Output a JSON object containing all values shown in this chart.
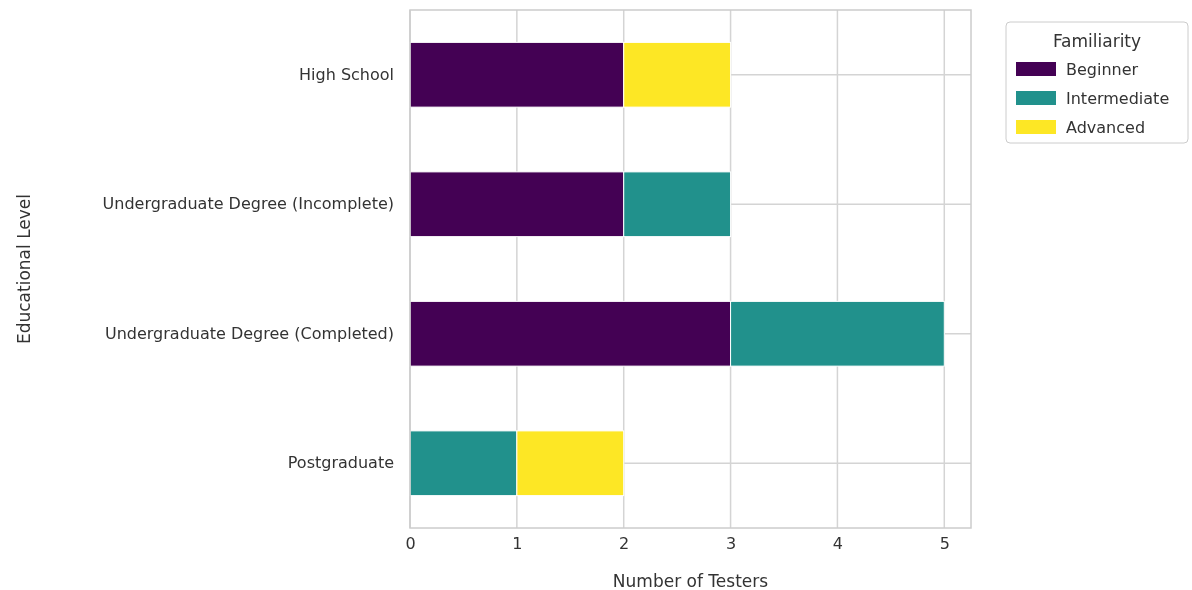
{
  "chart_data": {
    "type": "bar",
    "orientation": "horizontal",
    "stacked": true,
    "xlabel": "Number of Testers",
    "ylabel": "Educational Level",
    "legend_title": "Familiarity",
    "legend": "top right",
    "grid": true,
    "categories": [
      "High School",
      "Undergraduate Degree (Incomplete)",
      "Undergraduate Degree (Completed)",
      "Postgraduate"
    ],
    "series": [
      {
        "name": "Beginner",
        "color": "#440154",
        "values": [
          2,
          2,
          3,
          0
        ]
      },
      {
        "name": "Intermediate",
        "color": "#21918c",
        "values": [
          0,
          1,
          2,
          1
        ]
      },
      {
        "name": "Advanced",
        "color": "#fde725",
        "values": [
          1,
          0,
          0,
          1
        ]
      }
    ],
    "xlim": [
      0,
      5.25
    ],
    "xticks": [
      0,
      1,
      2,
      3,
      4,
      5
    ]
  }
}
